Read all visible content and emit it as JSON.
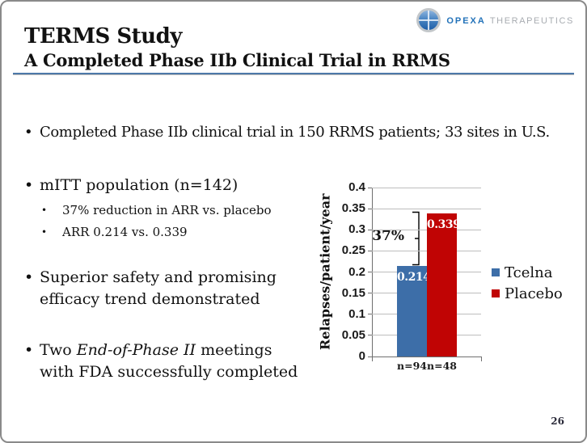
{
  "slide": {
    "title": "TERMS Study",
    "subtitle": "A Completed Phase IIb Clinical Trial in RRMS",
    "page_number": "26"
  },
  "logo": {
    "brand": "OPEXA",
    "brand_suffix": "THERAPEUTICS",
    "brand_color": "#2272b9",
    "suffix_color": "#a8acb1",
    "globe_icon": "globe-quadrant-icon"
  },
  "bullets": {
    "b1": "Completed Phase IIb clinical trial in 150 RRMS patients; 33 sites in U.S.",
    "b2": "mITT population (n=142)",
    "b2_sub1": "37% reduction in ARR vs. placebo",
    "b2_sub2": "ARR 0.214 vs. 0.339",
    "b3_line1": "Superior safety and promising",
    "b3_line2": "efficacy trend demonstrated",
    "b4_pre": "Two ",
    "b4_italic": "End-of-Phase II",
    "b4_post": " meetings",
    "b4_line2": "with FDA successfully completed"
  },
  "chart_data": {
    "type": "bar",
    "title": "",
    "xlabel": "",
    "ylabel": "Relapses/patient/year",
    "ylim": [
      0,
      0.4
    ],
    "yticks": [
      "0",
      "0.05",
      "0.1",
      "0.15",
      "0.2",
      "0.25",
      "0.3",
      "0.35",
      "0.4"
    ],
    "grid": true,
    "legend_position": "right-middle",
    "categories": [
      "n=94",
      "n=48"
    ],
    "series": [
      {
        "name": "Tcelna",
        "value": 0.214,
        "value_label": "0.214",
        "category": "n=94",
        "color": "#3d6ea8"
      },
      {
        "name": "Placebo",
        "value": 0.339,
        "value_label": "0.339",
        "category": "n=48",
        "color": "#c00404"
      }
    ],
    "annotation": {
      "text": "37%"
    },
    "colors": {
      "gridline": "#bdbdbd",
      "axis": "#6f6f6f",
      "value_label_text": "#ffffff"
    }
  }
}
